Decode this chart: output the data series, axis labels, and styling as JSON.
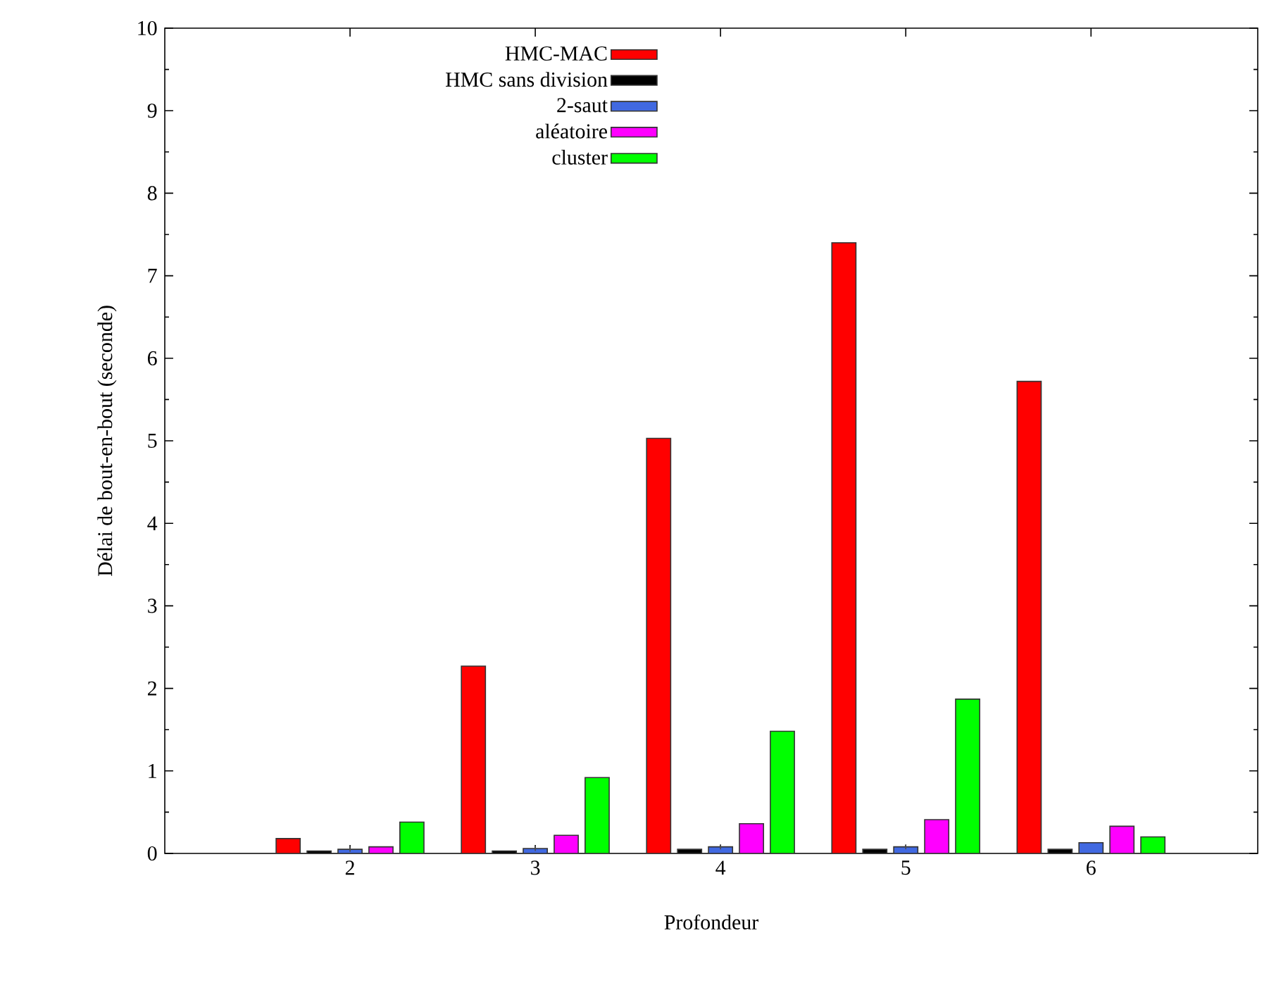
{
  "chart_data": {
    "type": "bar",
    "xlabel": "Profondeur",
    "ylabel": "Délai de bout-en-bout (seconde)",
    "categories": [
      "2",
      "3",
      "4",
      "5",
      "6"
    ],
    "series": [
      {
        "name": "HMC-MAC",
        "color": "#ff0000",
        "values": [
          0.18,
          2.27,
          5.03,
          7.4,
          5.72
        ]
      },
      {
        "name": "HMC sans division",
        "color": "#000000",
        "values": [
          0.03,
          0.03,
          0.05,
          0.05,
          0.05
        ]
      },
      {
        "name": "2-saut",
        "color": "#4169e1",
        "values": [
          0.05,
          0.06,
          0.08,
          0.08,
          0.13
        ],
        "errors": [
          0.03,
          0.03,
          0.03,
          0.03,
          null
        ]
      },
      {
        "name": "aléatoire",
        "color": "#ff00ff",
        "values": [
          0.08,
          0.22,
          0.36,
          0.41,
          0.33
        ]
      },
      {
        "name": "cluster",
        "color": "#00ff00",
        "values": [
          0.38,
          0.92,
          1.48,
          1.87,
          0.2
        ]
      }
    ],
    "ylim": [
      0,
      10
    ],
    "yticks": [
      0,
      1,
      2,
      3,
      4,
      5,
      6,
      7,
      8,
      9,
      10
    ],
    "grid": false,
    "legend": "top left"
  }
}
